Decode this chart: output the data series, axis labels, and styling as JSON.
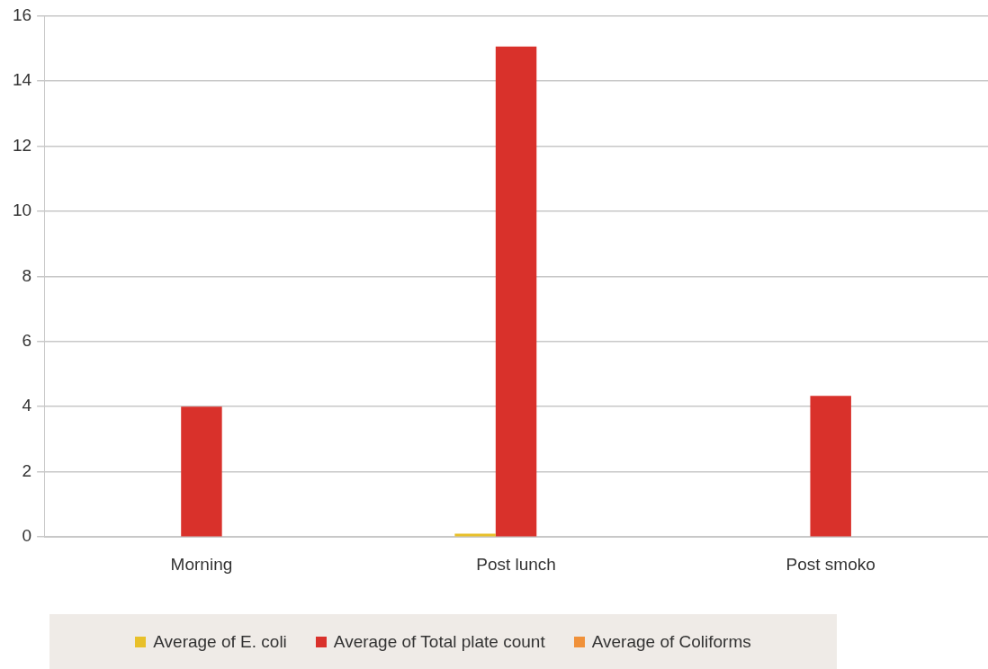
{
  "chart_data": {
    "type": "bar",
    "categories": [
      "Morning",
      "Post lunch",
      "Post smoko"
    ],
    "series": [
      {
        "name": "Average of E. coli",
        "color": "#e8c02a",
        "values": [
          0,
          0.1,
          0
        ]
      },
      {
        "name": "Average of Total plate count",
        "color": "#d9312b",
        "values": [
          4,
          15.05,
          4.33
        ]
      },
      {
        "name": "Average of Coliforms",
        "color": "#f0913a",
        "values": [
          0,
          0,
          0
        ]
      }
    ],
    "ylim": [
      0,
      16
    ],
    "yticks": [
      0,
      2,
      4,
      6,
      8,
      10,
      12,
      14,
      16
    ],
    "grid": "y",
    "legend": "bottom"
  }
}
